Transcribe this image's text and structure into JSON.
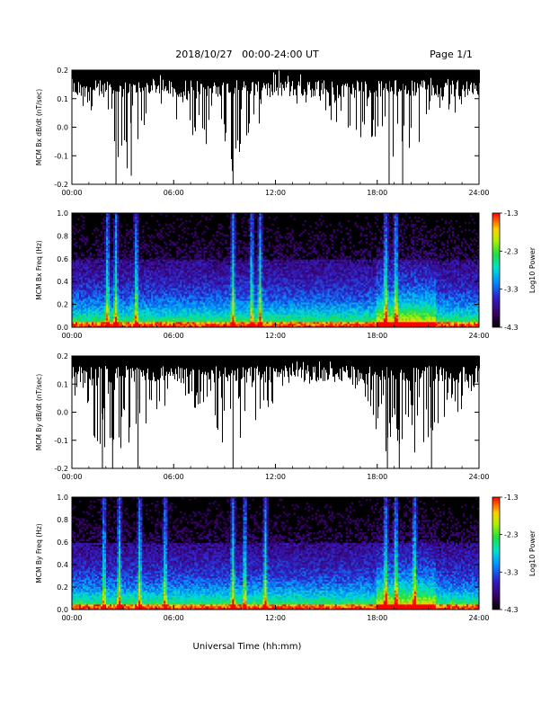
{
  "header": {
    "date_range": "2018/10/27   00:00-24:00 UT",
    "page": "Page 1/1"
  },
  "chart_data": [
    {
      "type": "line",
      "ylabel": "MCM Bx dB/dt (nT/sec)",
      "x_ticks": [
        "00:00",
        "06:00",
        "12:00",
        "18:00",
        "24:00"
      ],
      "xlim_hours": [
        0,
        24
      ],
      "ylim": [
        -0.2,
        0.2
      ],
      "y_ticks": [
        "-0.2",
        "-0.1",
        "0.0",
        "0.1",
        "0.2"
      ],
      "color": "#000000",
      "baseline": 0.165,
      "envelope": [
        {
          "t": 0.0,
          "upper": 0.2,
          "lower": 0.05
        },
        {
          "t": 1.5,
          "upper": 0.2,
          "lower": 0.02
        },
        {
          "t": 2.6,
          "upper": 0.2,
          "lower": -0.2
        },
        {
          "t": 3.5,
          "upper": 0.2,
          "lower": -0.17
        },
        {
          "t": 5.0,
          "upper": 0.2,
          "lower": 0.08
        },
        {
          "t": 9.5,
          "upper": 0.2,
          "lower": -0.2
        },
        {
          "t": 12.0,
          "upper": 0.2,
          "lower": 0.1
        },
        {
          "t": 16.0,
          "upper": 0.2,
          "lower": 0.0
        },
        {
          "t": 18.7,
          "upper": 0.2,
          "lower": -0.2
        },
        {
          "t": 19.5,
          "upper": 0.2,
          "lower": -0.2
        },
        {
          "t": 21.0,
          "upper": 0.2,
          "lower": 0.0
        },
        {
          "t": 24.0,
          "upper": 0.2,
          "lower": 0.08
        }
      ]
    },
    {
      "type": "heatmap",
      "ylabel": "MCM Bx Freq (Hz)",
      "x_ticks": [
        "00:00",
        "06:00",
        "12:00",
        "18:00",
        "24:00"
      ],
      "xlim_hours": [
        0,
        24
      ],
      "ylim": [
        0.0,
        1.0
      ],
      "y_ticks": [
        "0.0",
        "0.2",
        "0.4",
        "0.6",
        "0.8",
        "1.0"
      ],
      "colorbar": {
        "label": "Log10 Power",
        "ticks": [
          "-1.3",
          "-2.3",
          "-3.3",
          "-4.3"
        ],
        "range": [
          -4.3,
          -1.3
        ]
      },
      "bursts_hours": [
        2.1,
        2.6,
        3.8,
        9.5,
        10.6,
        11.1,
        18.5,
        19.1
      ],
      "active_interval_hours": [
        18.0,
        21.5
      ]
    },
    {
      "type": "line",
      "ylabel": "MCM By dB/dt (nT/sec)",
      "x_ticks": [
        "00:00",
        "06:00",
        "12:00",
        "18:00",
        "24:00"
      ],
      "xlim_hours": [
        0,
        24
      ],
      "ylim": [
        -0.2,
        0.2
      ],
      "y_ticks": [
        "-0.2",
        "-0.1",
        "0.0",
        "0.1",
        "0.2"
      ],
      "color": "#000000",
      "baseline": 0.165,
      "envelope": [
        {
          "t": 0.0,
          "upper": 0.2,
          "lower": 0.06
        },
        {
          "t": 1.8,
          "upper": 0.2,
          "lower": -0.2
        },
        {
          "t": 2.4,
          "upper": 0.2,
          "lower": -0.2
        },
        {
          "t": 3.9,
          "upper": 0.2,
          "lower": -0.2
        },
        {
          "t": 6.0,
          "upper": 0.2,
          "lower": 0.06
        },
        {
          "t": 9.5,
          "upper": 0.2,
          "lower": -0.2
        },
        {
          "t": 13.0,
          "upper": 0.2,
          "lower": 0.1
        },
        {
          "t": 17.0,
          "upper": 0.2,
          "lower": 0.05
        },
        {
          "t": 18.6,
          "upper": 0.2,
          "lower": -0.2
        },
        {
          "t": 19.3,
          "upper": 0.2,
          "lower": -0.2
        },
        {
          "t": 21.2,
          "upper": 0.2,
          "lower": -0.2
        },
        {
          "t": 24.0,
          "upper": 0.2,
          "lower": 0.08
        }
      ]
    },
    {
      "type": "heatmap",
      "ylabel": "MCM By Freq (Hz)",
      "x_ticks": [
        "00:00",
        "06:00",
        "12:00",
        "18:00",
        "24:00"
      ],
      "xlim_hours": [
        0,
        24
      ],
      "ylim": [
        0.0,
        1.0
      ],
      "y_ticks": [
        "0.0",
        "0.2",
        "0.4",
        "0.6",
        "0.8",
        "1.0"
      ],
      "colorbar": {
        "label": "Log10 Power",
        "ticks": [
          "-1.3",
          "-2.3",
          "-3.3",
          "-4.3"
        ],
        "range": [
          -4.3,
          -1.3
        ]
      },
      "bursts_hours": [
        1.9,
        2.8,
        4.0,
        5.5,
        9.5,
        10.2,
        11.4,
        18.5,
        19.1,
        20.2
      ],
      "active_interval_hours": [
        18.0,
        21.5
      ]
    }
  ],
  "xlabel": "Universal Time (hh:mm)"
}
